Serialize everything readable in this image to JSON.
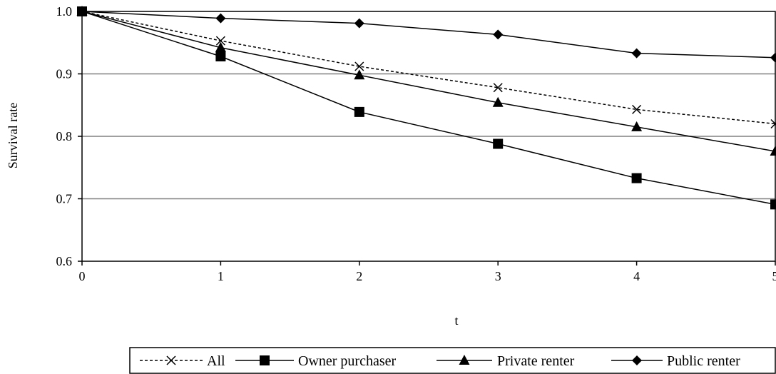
{
  "chart_data": {
    "type": "line",
    "title": "",
    "xlabel": "t",
    "ylabel": "Survival rate",
    "xlim": [
      0,
      5
    ],
    "ylim": [
      0.6,
      1.0
    ],
    "x": [
      0,
      1,
      2,
      3,
      4,
      5
    ],
    "x_ticks": [
      "0",
      "1",
      "2",
      "3",
      "4",
      "5"
    ],
    "y_ticks": [
      "0.6",
      "0.7",
      "0.8",
      "0.9",
      "1.0"
    ],
    "y_tick_values": [
      0.6,
      0.7,
      0.8,
      0.9,
      1.0
    ],
    "grid": "horizontal",
    "legend_position": "bottom",
    "series": [
      {
        "name": "All",
        "marker": "x",
        "dash": "dashed",
        "values": [
          1.0,
          0.953,
          0.912,
          0.878,
          0.843,
          0.82
        ]
      },
      {
        "name": "Owner purchaser",
        "marker": "square",
        "dash": "solid",
        "values": [
          1.0,
          0.928,
          0.839,
          0.788,
          0.733,
          0.691
        ]
      },
      {
        "name": "Private renter",
        "marker": "triangle",
        "dash": "solid",
        "values": [
          1.0,
          0.942,
          0.898,
          0.854,
          0.815,
          0.776
        ]
      },
      {
        "name": "Public renter",
        "marker": "diamond",
        "dash": "solid",
        "values": [
          1.0,
          0.989,
          0.981,
          0.963,
          0.933,
          0.926
        ]
      }
    ],
    "colors": {
      "line": "#000000",
      "grid": "#808080",
      "background": "#ffffff"
    }
  }
}
